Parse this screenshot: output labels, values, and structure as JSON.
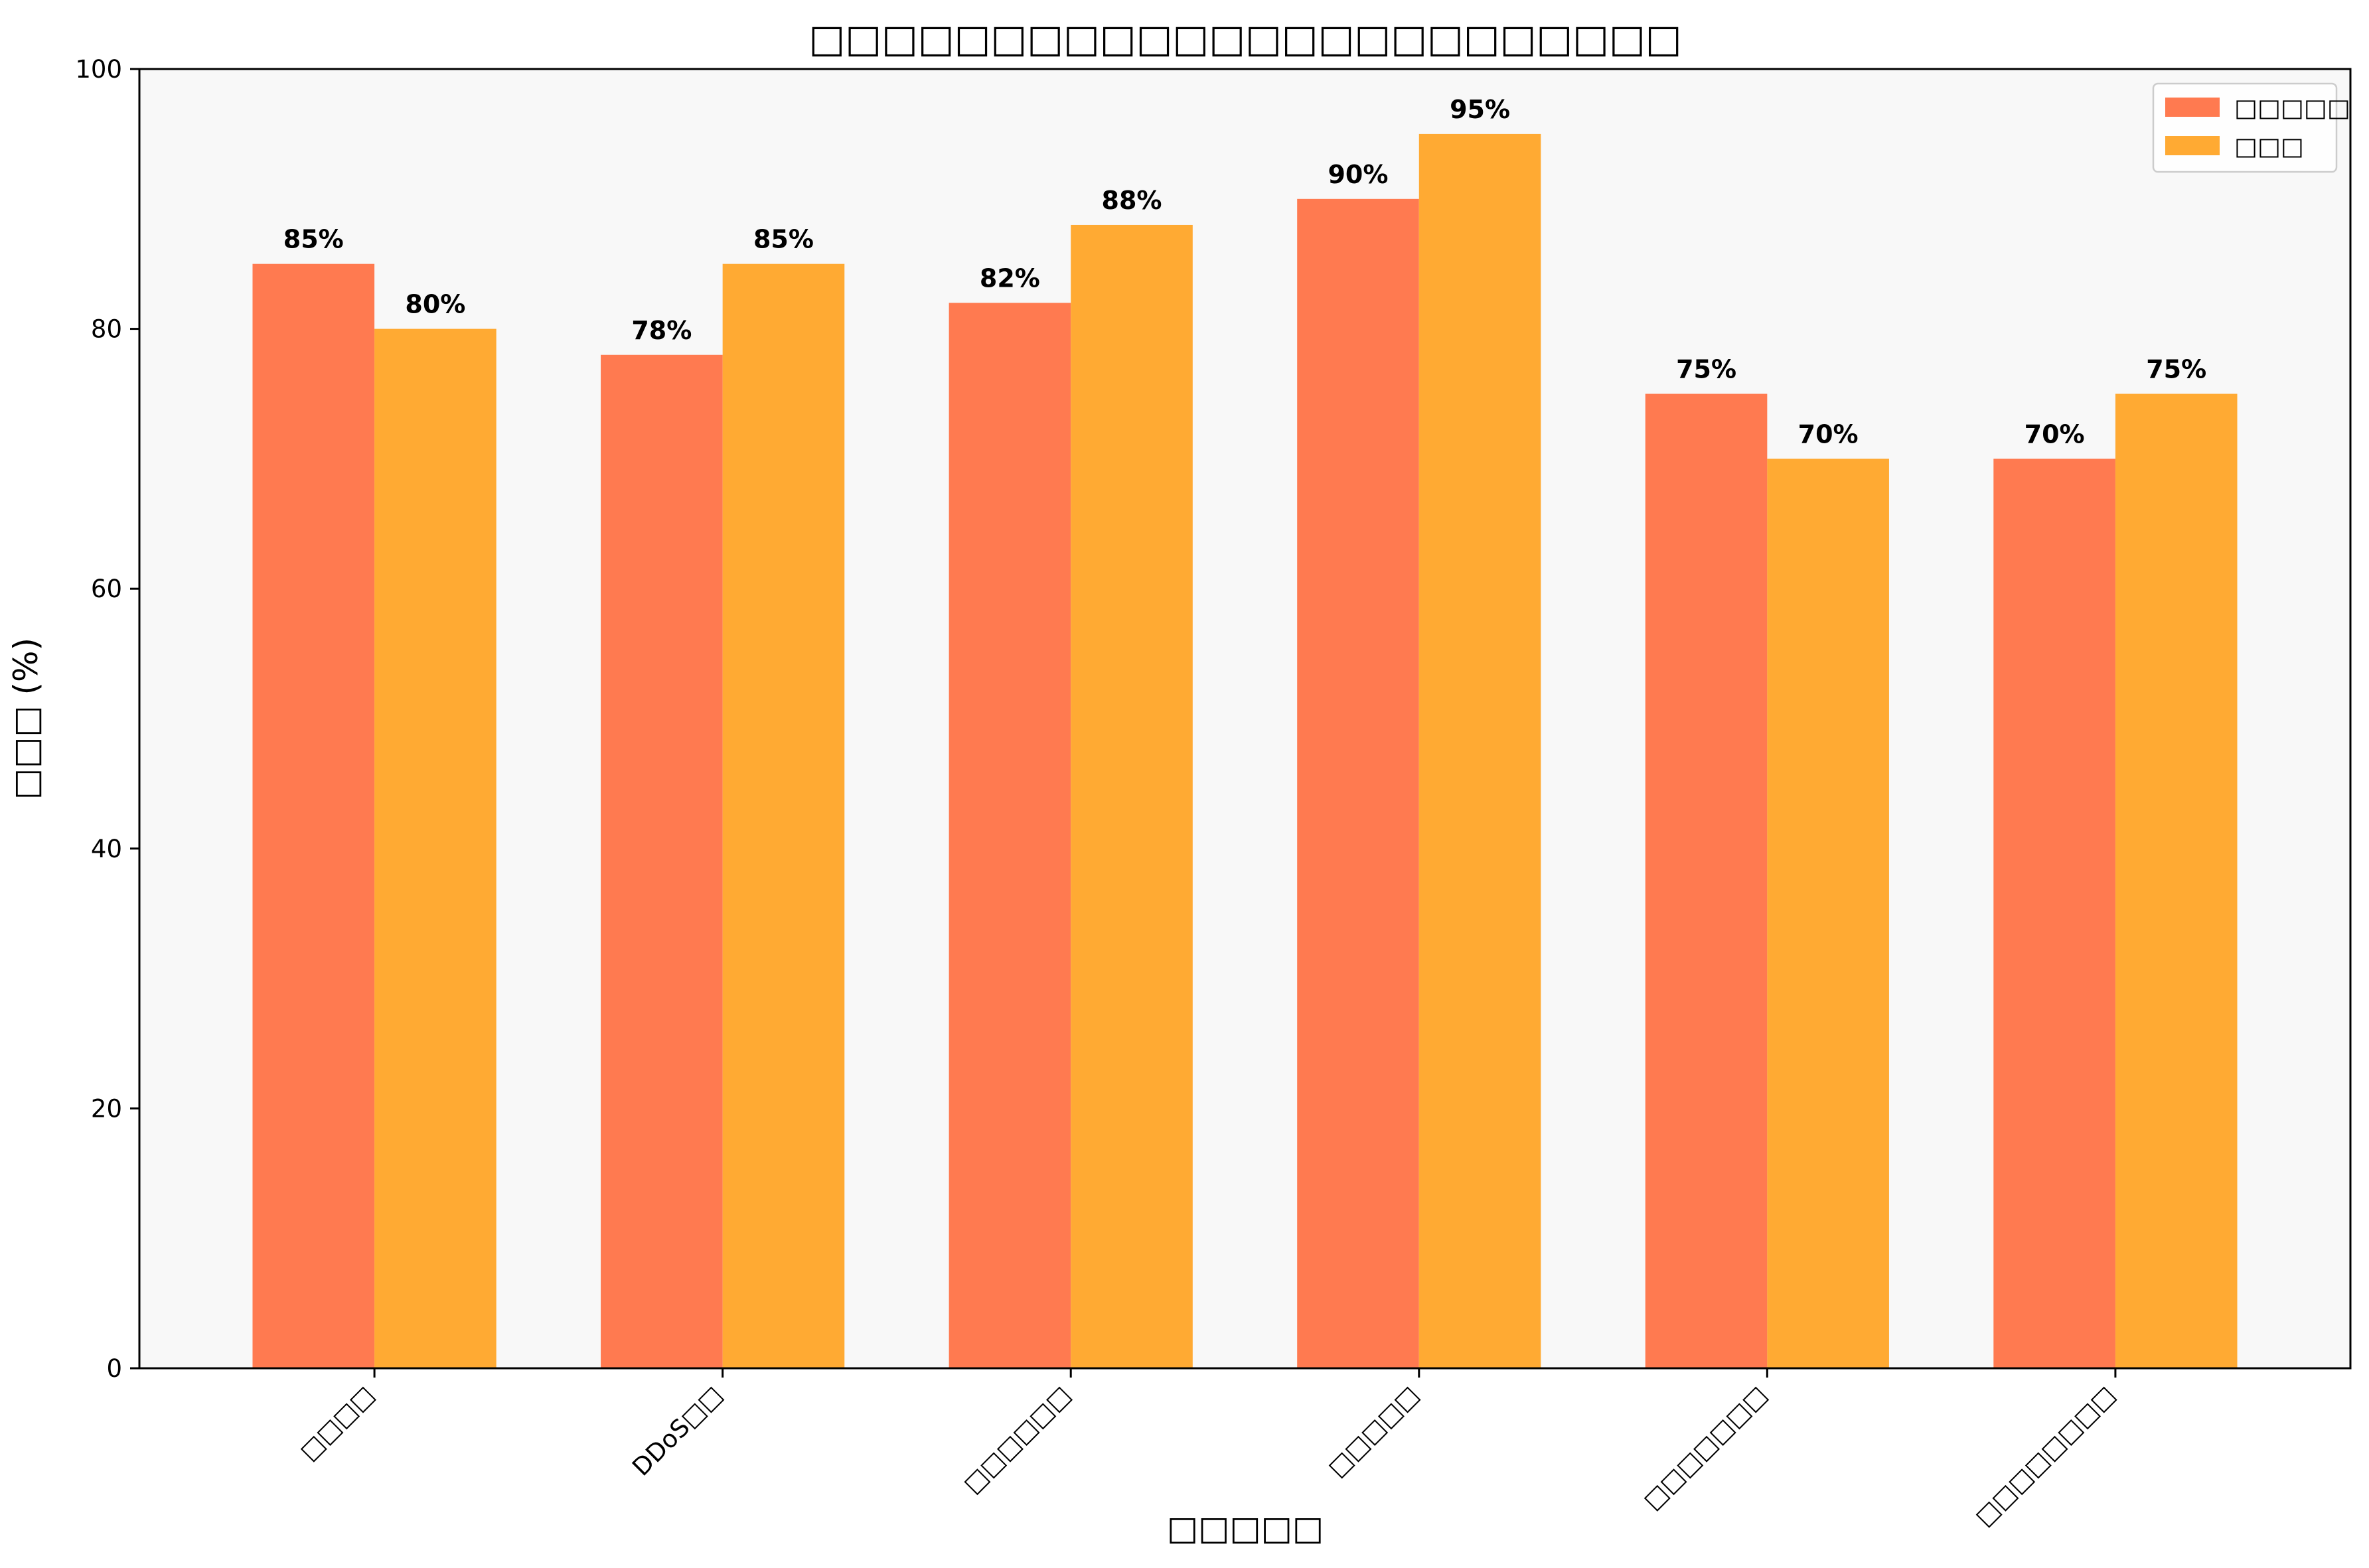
{
  "chart_data": {
    "type": "bar",
    "title": "□□□□□□□□□□□□□□□□□□□□□□□□",
    "xlabel": "□□□□□",
    "ylabel": "□□□ (%)",
    "ylim": [
      0,
      100
    ],
    "yticks": [
      0,
      20,
      40,
      60,
      80,
      100
    ],
    "grid": false,
    "legend_position": "top-right",
    "categories": [
      "□□□□",
      "DDoS□□",
      "□□□□□□",
      "□□□□□",
      "□□□□□□□",
      "□□□□□□□□"
    ],
    "series": [
      {
        "name": "□□□□□",
        "color": "#FF7A50",
        "values": [
          85,
          78,
          82,
          90,
          75,
          70
        ],
        "labels": [
          "85%",
          "78%",
          "82%",
          "90%",
          "75%",
          "70%"
        ]
      },
      {
        "name": "□□□",
        "color": "#FFAA33",
        "values": [
          80,
          85,
          88,
          95,
          70,
          75
        ],
        "labels": [
          "80%",
          "85%",
          "88%",
          "95%",
          "70%",
          "75%"
        ]
      }
    ]
  },
  "colors": {
    "plot_background": "#F8F8F8",
    "axis": "#000000"
  }
}
